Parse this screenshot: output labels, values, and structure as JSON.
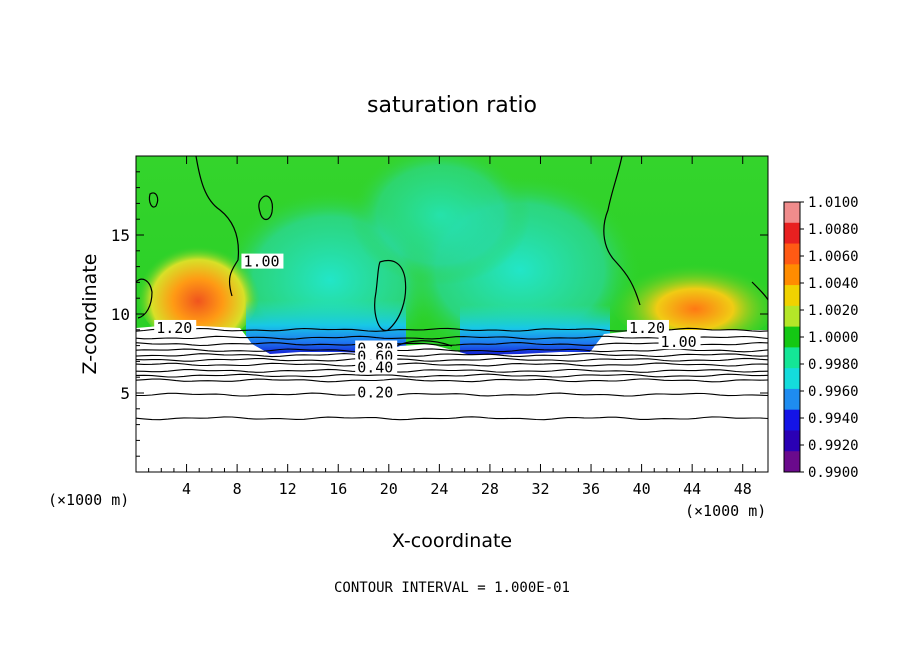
{
  "chart_data": {
    "type": "heatmap",
    "title": "saturation ratio",
    "xlabel": "X-coordinate",
    "ylabel": "Z-coordinate",
    "x_unit_label": "(×1000 m)",
    "z_unit_label": "(×1000 m)",
    "footer": "CONTOUR INTERVAL = 1.000E-01",
    "xlim": [
      0,
      50
    ],
    "ylim": [
      0,
      20
    ],
    "x_ticks": [
      4,
      8,
      12,
      16,
      20,
      24,
      28,
      32,
      36,
      40,
      44,
      48
    ],
    "y_ticks": [
      5,
      10,
      15
    ],
    "colorbar": {
      "range": [
        0.99,
        1.01
      ],
      "labels": [
        "1.0100",
        "1.0080",
        "1.0060",
        "1.0040",
        "1.0020",
        "1.0000",
        "0.9980",
        "0.9960",
        "0.9940",
        "0.9920",
        "0.9900"
      ],
      "colors": [
        "#f08c8c",
        "#e82020",
        "#ff5a14",
        "#ff8c00",
        "#f0d200",
        "#b4e628",
        "#14c814",
        "#14e696",
        "#14dcdc",
        "#1e8cf0",
        "#1414e6",
        "#2a00b4",
        "#6a0a8c"
      ]
    },
    "contour_labels": [
      {
        "text": "1.20",
        "x": 1.6,
        "z": 8.8
      },
      {
        "text": "1.20",
        "x": 39.0,
        "z": 8.8
      },
      {
        "text": "1.00",
        "x": 41.5,
        "z": 7.9
      },
      {
        "text": "1.00",
        "x": 8.5,
        "z": 13.0
      },
      {
        "text": "0.80",
        "x": 17.5,
        "z": 7.5
      },
      {
        "text": "0.60",
        "x": 17.5,
        "z": 7.0
      },
      {
        "text": "0.40",
        "x": 17.5,
        "z": 6.3
      },
      {
        "text": "0.20",
        "x": 17.5,
        "z": 4.7
      }
    ],
    "horizontal_contours_z": [
      3.4,
      4.9,
      5.8,
      6.1,
      6.4,
      6.8,
      7.1,
      7.4,
      7.7,
      8.1,
      8.5,
      9.0
    ],
    "grid": false
  }
}
